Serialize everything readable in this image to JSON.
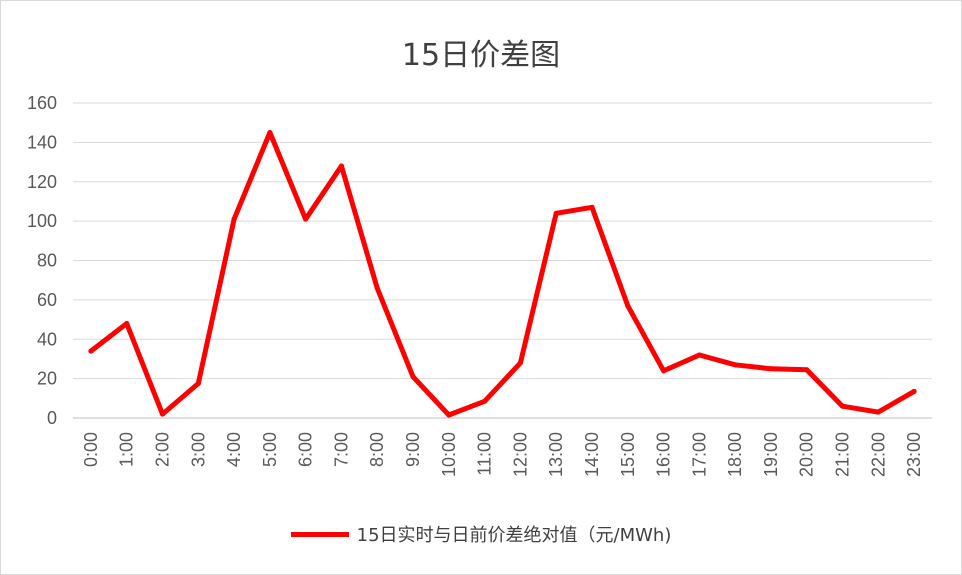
{
  "chart_data": {
    "type": "line",
    "title": "15日价差图",
    "xlabel": "",
    "ylabel": "",
    "categories": [
      "0:00",
      "1:00",
      "2:00",
      "3:00",
      "4:00",
      "5:00",
      "6:00",
      "7:00",
      "8:00",
      "9:00",
      "10:00",
      "11:00",
      "12:00",
      "13:00",
      "14:00",
      "15:00",
      "16:00",
      "17:00",
      "18:00",
      "19:00",
      "20:00",
      "21:00",
      "22:00",
      "23:00"
    ],
    "series": [
      {
        "name": "15日实时与日前价差绝对值（元/MWh)",
        "color": "#ff0000",
        "values": [
          34,
          48,
          2,
          17.5,
          101,
          145,
          101,
          128,
          66,
          21,
          1.5,
          8.5,
          28,
          104,
          107,
          57,
          24,
          32,
          27,
          25,
          24.5,
          6,
          3,
          13.5
        ]
      }
    ],
    "ylim": [
      0,
      160
    ],
    "yticks": [
      0,
      20,
      40,
      60,
      80,
      100,
      120,
      140,
      160
    ],
    "grid": true,
    "legend_position": "bottom"
  }
}
